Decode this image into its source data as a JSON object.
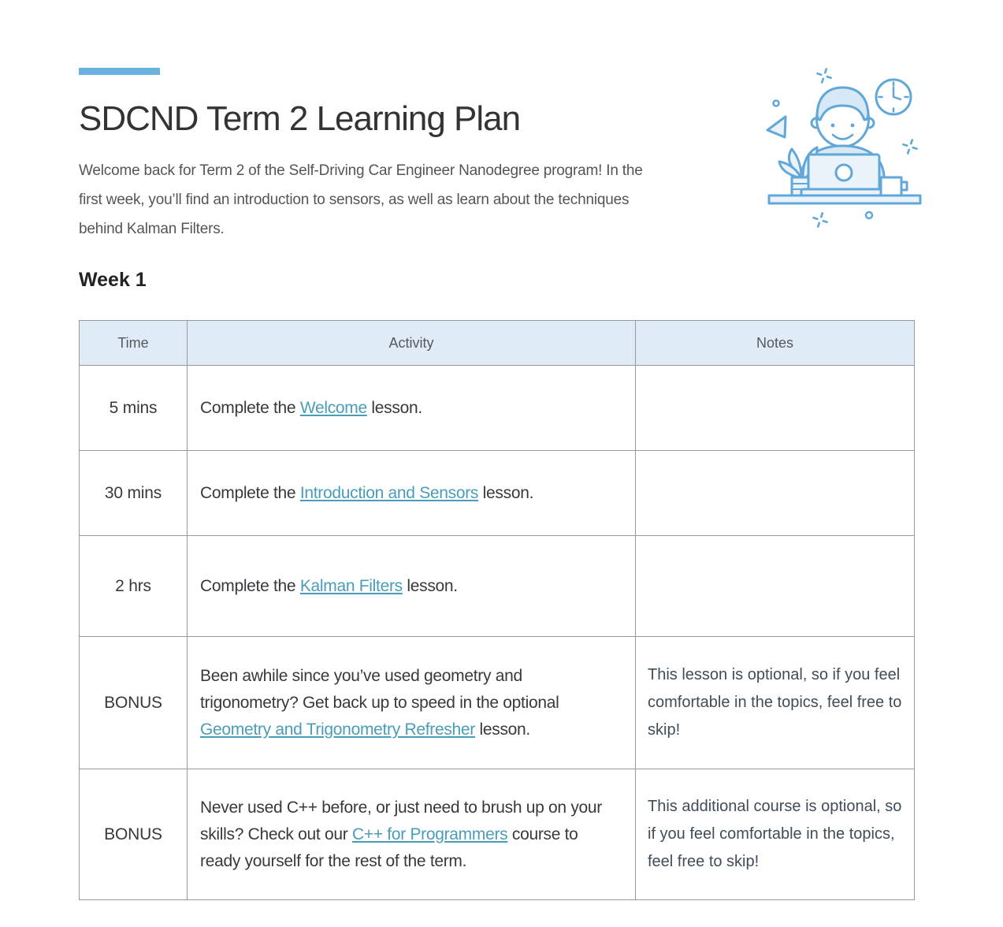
{
  "page": {
    "title": "SDCND Term 2 Learning Plan",
    "intro": "Welcome back for Term 2 of the Self-Driving Car Engineer Nanodegree program! In the first week, you’ll find an introduction to sensors, as well as learn about the techniques behind Kalman Filters.",
    "section_heading": "Week 1"
  },
  "illustration": {
    "alt": "person working at a laptop with clock, plant and coffee mug line illustration"
  },
  "table": {
    "headers": [
      "Time",
      "Activity",
      "Notes"
    ],
    "rows": [
      {
        "time": "5 mins",
        "activity": [
          {
            "text": "Complete the "
          },
          {
            "text": "Welcome",
            "link": true
          },
          {
            "text": " lesson."
          }
        ],
        "notes": ""
      },
      {
        "time": "30 mins",
        "activity": [
          {
            "text": "Complete the "
          },
          {
            "text": "Introduction and Sensors",
            "link": true
          },
          {
            "text": " lesson."
          }
        ],
        "notes": ""
      },
      {
        "time": "2 hrs",
        "activity": [
          {
            "text": "Complete the "
          },
          {
            "text": "Kalman Filters",
            "link": true
          },
          {
            "text": " lesson."
          }
        ],
        "notes": ""
      },
      {
        "time": "BONUS",
        "activity": [
          {
            "text": "Been awhile since you’ve used geometry and trigonometry? Get back up to speed in the optional "
          },
          {
            "text": "Geometry and Trigonometry Refresher",
            "link": true
          },
          {
            "text": " lesson."
          }
        ],
        "notes": "This lesson is optional, so if you feel comfortable in the topics, feel free to skip!"
      },
      {
        "time": "BONUS",
        "activity": [
          {
            "text": "Never used C++ before, or just need to brush up on your skills? Check out our "
          },
          {
            "text": "C++ for Programmers",
            "link": true
          },
          {
            "text": " course to ready yourself for the rest of the term."
          }
        ],
        "notes": "This additional course is optional, so if you feel comfortable in the topics, feel free to skip!"
      }
    ]
  },
  "colors": {
    "accent_bar": "#68b1e1",
    "link": "#4a9db8",
    "header_bg": "#dfecf7",
    "table_border": "#999999",
    "title_text": "#333333",
    "body_text": "#555555",
    "notes_text": "#404c57",
    "illus_stroke": "#61a7d8"
  }
}
